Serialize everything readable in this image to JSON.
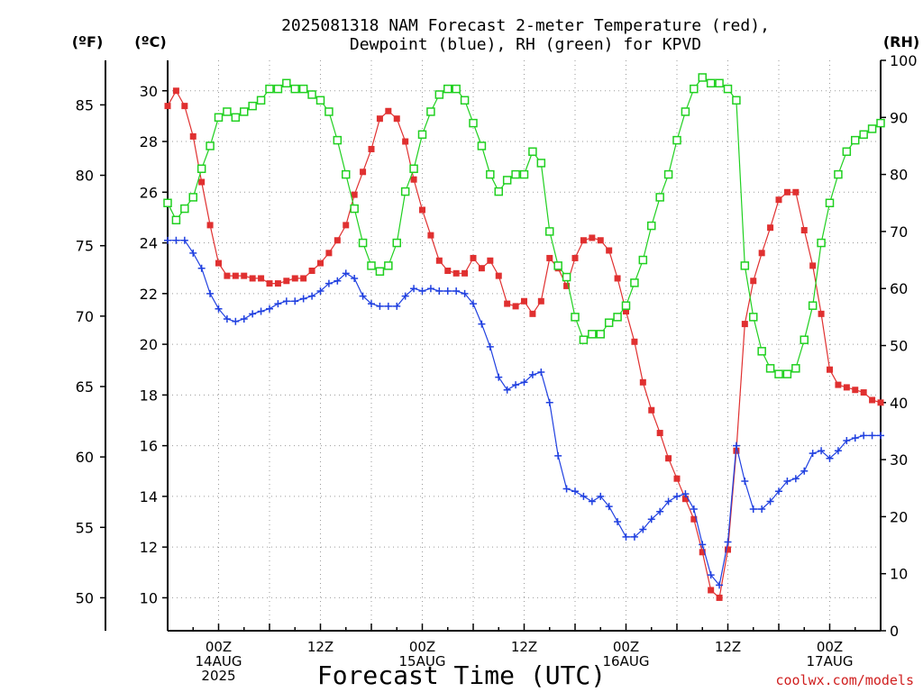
{
  "title_line1": "2025081318 NAM Forecast 2-meter Temperature (red),",
  "title_line2": "Dewpoint (blue), RH (green) for KPVD",
  "unit_f": "(ºF)",
  "unit_c": "(ºC)",
  "unit_rh": "(RH)",
  "xlabel": "Forecast Time (UTC)",
  "credit": "coolwx.com/models",
  "colors": {
    "temperature": "#e03030",
    "dewpoint": "#2040e0",
    "rh": "#20d020"
  },
  "chart_data": {
    "type": "line",
    "title": "2025081318 NAM Forecast 2-meter Temperature (red), Dewpoint (blue), RH (green) for KPVD",
    "xlabel": "Forecast Time (UTC)",
    "x_ticks": [
      {
        "hour": 6,
        "lines": [
          "00Z",
          "14AUG",
          "2025"
        ]
      },
      {
        "hour": 18,
        "lines": [
          "12Z"
        ]
      },
      {
        "hour": 30,
        "lines": [
          "00Z",
          "15AUG"
        ]
      },
      {
        "hour": 42,
        "lines": [
          "12Z"
        ]
      },
      {
        "hour": 54,
        "lines": [
          "00Z",
          "16AUG"
        ]
      },
      {
        "hour": 66,
        "lines": [
          "12Z"
        ]
      },
      {
        "hour": 78,
        "lines": [
          "00Z",
          "17AUG"
        ]
      }
    ],
    "x_range_hours_from_init": [
      0,
      84
    ],
    "y_left_f": {
      "label": "(ºF)",
      "ticks": [
        50,
        55,
        60,
        65,
        70,
        75,
        80,
        85
      ]
    },
    "y_left_c": {
      "label": "(ºC)",
      "range": [
        8.7,
        31.2
      ],
      "ticks": [
        10,
        12,
        14,
        16,
        18,
        20,
        22,
        24,
        26,
        28,
        30
      ]
    },
    "y_right_rh": {
      "label": "(RH)",
      "range": [
        0,
        100
      ],
      "ticks": [
        0,
        10,
        20,
        30,
        40,
        50,
        60,
        70,
        80,
        90,
        100
      ]
    },
    "grid": true,
    "x": [
      0,
      1,
      2,
      3,
      4,
      5,
      6,
      7,
      8,
      9,
      10,
      11,
      12,
      13,
      14,
      15,
      16,
      17,
      18,
      19,
      20,
      21,
      22,
      23,
      24,
      25,
      26,
      27,
      28,
      29,
      30,
      31,
      32,
      33,
      34,
      35,
      36,
      37,
      38,
      39,
      40,
      41,
      42,
      43,
      44,
      45,
      46,
      47,
      48,
      49,
      50,
      51,
      52,
      53,
      54,
      55,
      56,
      57,
      58,
      59,
      60,
      61,
      62,
      63,
      64,
      65,
      66,
      67,
      68,
      69,
      70,
      71,
      72,
      73,
      74,
      75,
      76,
      77,
      78,
      79,
      80,
      81,
      82,
      83,
      84
    ],
    "series": [
      {
        "name": "Temperature (red)",
        "axis": "celsius",
        "values": [
          29.4,
          30.0,
          29.4,
          28.2,
          26.4,
          24.7,
          23.2,
          22.7,
          22.7,
          22.7,
          22.6,
          22.6,
          22.4,
          22.4,
          22.5,
          22.6,
          22.6,
          22.9,
          23.2,
          23.6,
          24.1,
          24.7,
          25.9,
          26.8,
          27.7,
          28.9,
          29.2,
          28.9,
          28.0,
          26.5,
          25.3,
          24.3,
          23.3,
          22.9,
          22.8,
          22.8,
          23.4,
          23.0,
          23.3,
          22.7,
          21.6,
          21.5,
          21.7,
          21.2,
          21.7,
          23.4,
          23.0,
          22.3,
          23.4,
          24.1,
          24.2,
          24.1,
          23.7,
          22.6,
          21.3,
          20.1,
          18.5,
          17.4,
          16.5,
          15.5,
          14.7,
          13.9,
          13.1,
          11.8,
          10.3,
          10.0,
          11.9,
          15.8,
          20.8,
          22.5,
          23.6,
          24.6,
          25.7,
          26.0,
          26.0,
          24.5,
          23.1,
          21.2,
          19.0,
          18.4,
          18.3,
          18.2,
          18.1,
          17.8,
          17.7
        ]
      },
      {
        "name": "Dewpoint (blue)",
        "axis": "celsius",
        "values": [
          24.1,
          24.1,
          24.1,
          23.6,
          23.0,
          22.0,
          21.4,
          21.0,
          20.9,
          21.0,
          21.2,
          21.3,
          21.4,
          21.6,
          21.7,
          21.7,
          21.8,
          21.9,
          22.1,
          22.4,
          22.5,
          22.8,
          22.6,
          21.9,
          21.6,
          21.5,
          21.5,
          21.5,
          21.9,
          22.2,
          22.1,
          22.2,
          22.1,
          22.1,
          22.1,
          22.0,
          21.6,
          20.8,
          19.9,
          18.7,
          18.2,
          18.4,
          18.5,
          18.8,
          18.9,
          17.7,
          15.6,
          14.3,
          14.2,
          14.0,
          13.8,
          14.0,
          13.6,
          13.0,
          12.4,
          12.4,
          12.7,
          13.1,
          13.4,
          13.8,
          14.0,
          14.1,
          13.5,
          12.1,
          10.9,
          10.5,
          12.2,
          16.0,
          14.6,
          13.5,
          13.5,
          13.8,
          14.2,
          14.6,
          14.7,
          15.0,
          15.7,
          15.8,
          15.5,
          15.8,
          16.2,
          16.3,
          16.4,
          16.4,
          16.4
        ]
      },
      {
        "name": "RH (green)",
        "axis": "rh",
        "values": [
          75,
          72,
          74,
          76,
          81,
          85,
          90,
          91,
          90,
          91,
          92,
          93,
          95,
          95,
          96,
          95,
          95,
          94,
          93,
          91,
          86,
          80,
          74,
          68,
          64,
          63,
          64,
          68,
          77,
          81,
          87,
          91,
          94,
          95,
          95,
          93,
          89,
          85,
          80,
          77,
          79,
          80,
          80,
          84,
          82,
          70,
          64,
          62,
          55,
          51,
          52,
          52,
          54,
          55,
          57,
          61,
          65,
          71,
          76,
          80,
          86,
          91,
          95,
          97,
          96,
          96,
          95,
          93,
          64,
          55,
          49,
          46,
          45,
          45,
          46,
          51,
          57,
          68,
          75,
          80,
          84,
          86,
          87,
          88,
          89
        ]
      }
    ]
  }
}
